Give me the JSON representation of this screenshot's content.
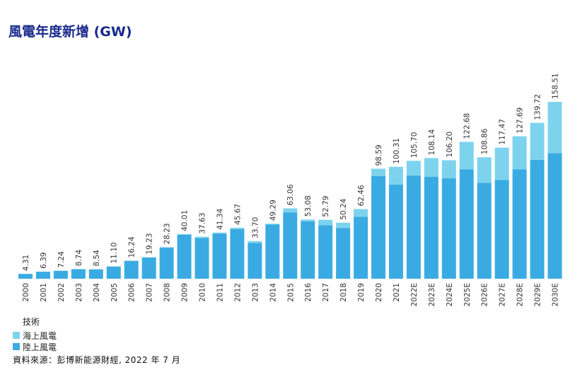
{
  "title": "風電年度新增 (GW)",
  "legend": {
    "title": "技術",
    "items": [
      {
        "label": "海上風電",
        "color": "#7dd3ee"
      },
      {
        "label": "陸上風電",
        "color": "#3aabe2"
      }
    ]
  },
  "source": "資料來源：彭博新能源財經, 2022 年 7 月",
  "chart_data": {
    "type": "bar",
    "stacked": true,
    "categories": [
      "2000",
      "2001",
      "2002",
      "2003",
      "2004",
      "2005",
      "2006",
      "2007",
      "2008",
      "2009",
      "2010",
      "2011",
      "2012",
      "2013",
      "2014",
      "2015",
      "2016",
      "2017",
      "2018",
      "2019",
      "2020",
      "2021",
      "2022E",
      "2023E",
      "2024E",
      "2025E",
      "2026E",
      "2027E",
      "2028E",
      "2029E",
      "2030E"
    ],
    "totals": [
      4.31,
      6.39,
      7.24,
      8.74,
      8.54,
      11.1,
      16.24,
      19.23,
      28.23,
      40.01,
      37.63,
      41.34,
      45.67,
      33.7,
      49.29,
      63.06,
      53.08,
      52.79,
      50.24,
      62.46,
      98.59,
      100.31,
      105.7,
      108.14,
      106.2,
      122.68,
      108.86,
      117.47,
      127.69,
      139.72,
      158.51
    ],
    "total_labels": [
      "4.31",
      "6.39",
      "7.24",
      "8.74",
      "8.54",
      "11.10",
      "16.24",
      "19.23",
      "28.23",
      "40.01",
      "37.63",
      "41.34",
      "45.67",
      "33.70",
      "49.29",
      "63.06",
      "53.08",
      "52.79",
      "50.24",
      "62.46",
      "98.59",
      "100.31",
      "105.70",
      "108.14",
      "106.20",
      "122.68",
      "108.86",
      "117.47",
      "127.69",
      "139.72",
      "158.51"
    ],
    "series": [
      {
        "name": "陸上風電",
        "values": [
          4.3,
          6.3,
          7.0,
          8.5,
          8.4,
          10.9,
          16.0,
          19.0,
          28.0,
          39.5,
          36.5,
          40.5,
          44.5,
          32.0,
          48.5,
          59.5,
          51.5,
          48.0,
          45.5,
          55.5,
          92.0,
          84.5,
          92.5,
          91.5,
          90.0,
          98.0,
          86.0,
          88.5,
          98.0,
          106.5,
          112.5
        ]
      },
      {
        "name": "海上風電",
        "values": [
          0.01,
          0.09,
          0.24,
          0.24,
          0.14,
          0.2,
          0.24,
          0.23,
          0.23,
          0.51,
          1.13,
          0.84,
          1.17,
          1.7,
          0.79,
          3.56,
          1.58,
          4.79,
          4.74,
          6.96,
          6.59,
          15.81,
          13.2,
          16.64,
          16.2,
          24.68,
          22.86,
          28.97,
          29.69,
          33.22,
          46.01
        ]
      }
    ],
    "ylim": [
      0,
      160
    ],
    "grid": false,
    "legend_position": "bottom-left"
  }
}
